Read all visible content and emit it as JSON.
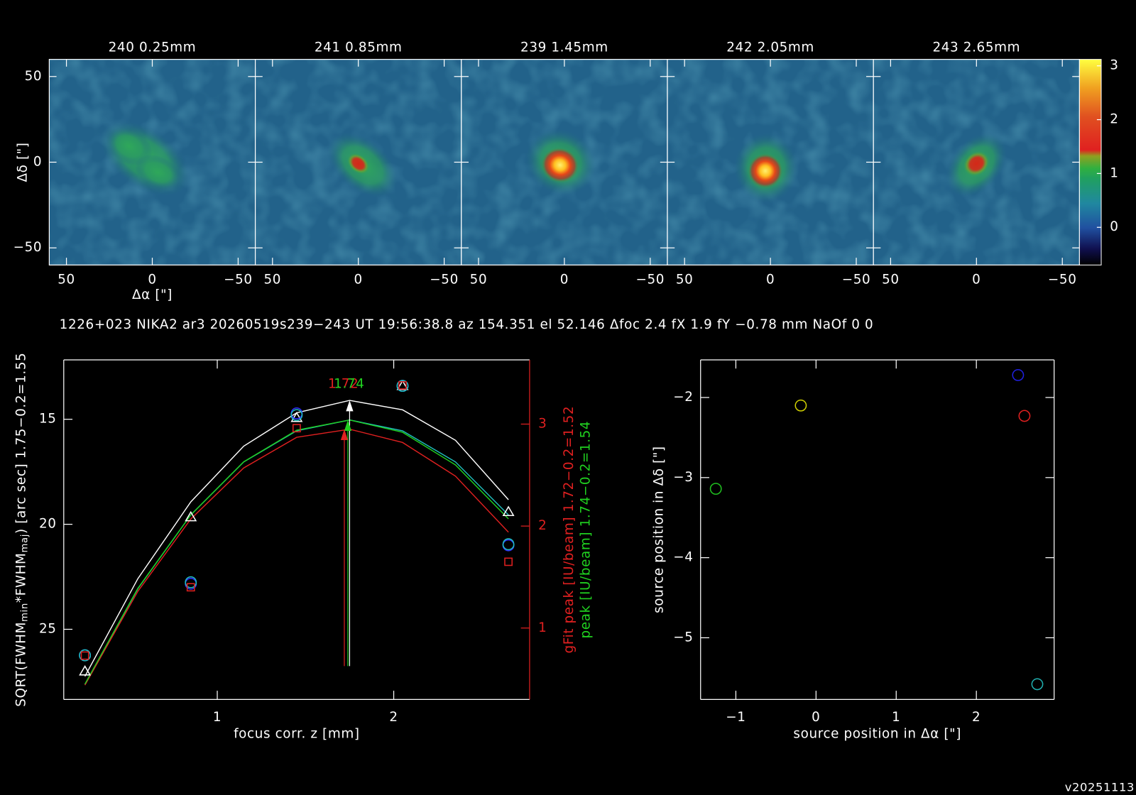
{
  "info_line": "1226+023 NIKA2 ar3 20260519s239−243 UT 19:56:38.8 az 154.351 el 52.146 Δfoc 2.4 fX 1.9 fY −0.78 mm NaOf 0 0",
  "version": "v20251113",
  "chart_data": [
    {
      "type": "heatmap",
      "panel_titles": [
        "240 0.25mm",
        "241 0.85mm",
        "239 1.45mm",
        "242 2.05mm",
        "243 2.65mm"
      ],
      "xlabel": "Δα [\"]",
      "ylabel": "Δδ [\"]",
      "xlim": [
        60,
        -60
      ],
      "ylim": [
        -60,
        60
      ],
      "xticks": [
        50,
        0,
        {
          "value": -50,
          "label": "−50"
        }
      ],
      "yticks": [
        {
          "value": -50,
          "label": "−50"
        },
        0,
        50
      ],
      "colorbar": {
        "lim": [
          -0.7,
          3.12
        ],
        "ticks": [
          0,
          1,
          2,
          3
        ]
      }
    },
    {
      "type": "scatter",
      "xlabel": "focus corr. z [mm]",
      "ylabel": [
        "SQRT(FWHM",
        "min",
        "*FWHM",
        "maj",
        ")  [arc sec] 1.75−0.2=1.55"
      ],
      "y2labels": [
        {
          "text": "gFit peak [IU/beam] 1.72−0.2=1.52",
          "color": "#e02020"
        },
        {
          "text": "peak [IU/beam] 1.74−0.2=1.54",
          "color": "#20d020"
        }
      ],
      "xlim": [
        0.13,
        2.77
      ],
      "ylim": [
        28.34,
        12.17
      ],
      "y2lim": [
        0.3,
        3.63
      ],
      "xticks": [
        1,
        2
      ],
      "yticks": [
        15,
        20,
        25
      ],
      "y2ticks": [
        1,
        2,
        3
      ],
      "y2color": "#e02020",
      "x": [
        0.25,
        0.85,
        1.45,
        2.05,
        2.65
      ],
      "series": [
        {
          "color": "#ffffff",
          "marker": "triangle",
          "values": [
            27.0,
            19.66,
            14.93,
            13.41,
            19.41
          ]
        },
        {
          "color": "#3030ff",
          "marker": "circle",
          "values": [
            26.24,
            22.83,
            14.72,
            13.41,
            21.0
          ]
        },
        {
          "color": "#20c0c0",
          "marker": "circle",
          "values": [
            26.24,
            22.76,
            14.8,
            13.41,
            20.95
          ]
        },
        {
          "color": "#e02020",
          "marker": "square",
          "axis": "y2",
          "values": [
            0.73,
            1.4,
            2.96,
            3.38,
            1.65
          ]
        }
      ],
      "fit_x": [
        0.25,
        0.55,
        0.85,
        1.15,
        1.45,
        1.75,
        2.05,
        2.35,
        2.65
      ],
      "fits": [
        {
          "color": "#ffffff",
          "values": [
            27.24,
            22.59,
            18.93,
            16.28,
            14.69,
            14.1,
            14.55,
            16.0,
            18.83
          ]
        },
        {
          "color": "#20c0c0",
          "values": [
            27.62,
            23.07,
            19.55,
            17.03,
            15.55,
            15.03,
            15.55,
            17.03,
            19.55
          ]
        },
        {
          "color": "#e02020",
          "axis": "y2",
          "values": [
            0.44,
            1.36,
            2.07,
            2.57,
            2.87,
            2.95,
            2.82,
            2.49,
            1.94
          ]
        },
        {
          "color": "#20d020",
          "axis": "y2",
          "values": [
            0.45,
            1.39,
            2.11,
            2.63,
            2.94,
            3.04,
            2.92,
            2.6,
            2.07
          ]
        }
      ],
      "arrows": [
        {
          "x": 1.75,
          "y": 14.1,
          "color": "#ffffff"
        },
        {
          "x": 1.74,
          "y": 3.04,
          "color": "#20d020",
          "axis": "y2"
        },
        {
          "x": 1.72,
          "y": 2.95,
          "color": "#e02020",
          "axis": "y2"
        }
      ],
      "peak_labels": [
        {
          "text": "1.72",
          "color": "#e02020"
        },
        {
          "text": "1.74",
          "color": "#20d020"
        }
      ]
    },
    {
      "type": "scatter",
      "xlabel": "source position in Δα [\"]",
      "ylabel": "source position in Δδ [\"]",
      "xlim": [
        -1.44,
        2.97
      ],
      "ylim": [
        -5.77,
        -1.53
      ],
      "xticks": [
        {
          "value": -1,
          "label": "−1"
        },
        0,
        1,
        2
      ],
      "yticks": [
        {
          "value": -2,
          "label": "−2"
        },
        {
          "value": -3,
          "label": "−3"
        },
        {
          "value": -4,
          "label": "−4"
        },
        {
          "value": -5,
          "label": "−5"
        }
      ],
      "x": [
        -1.25,
        -0.19,
        2.52,
        2.6,
        2.76
      ],
      "values": [
        -3.14,
        -2.1,
        -1.72,
        -2.23,
        -5.58
      ],
      "colors": [
        "#20c020",
        "#d0d000",
        "#2020e0",
        "#e02020",
        "#20b0b0"
      ],
      "marker": "circle"
    }
  ]
}
